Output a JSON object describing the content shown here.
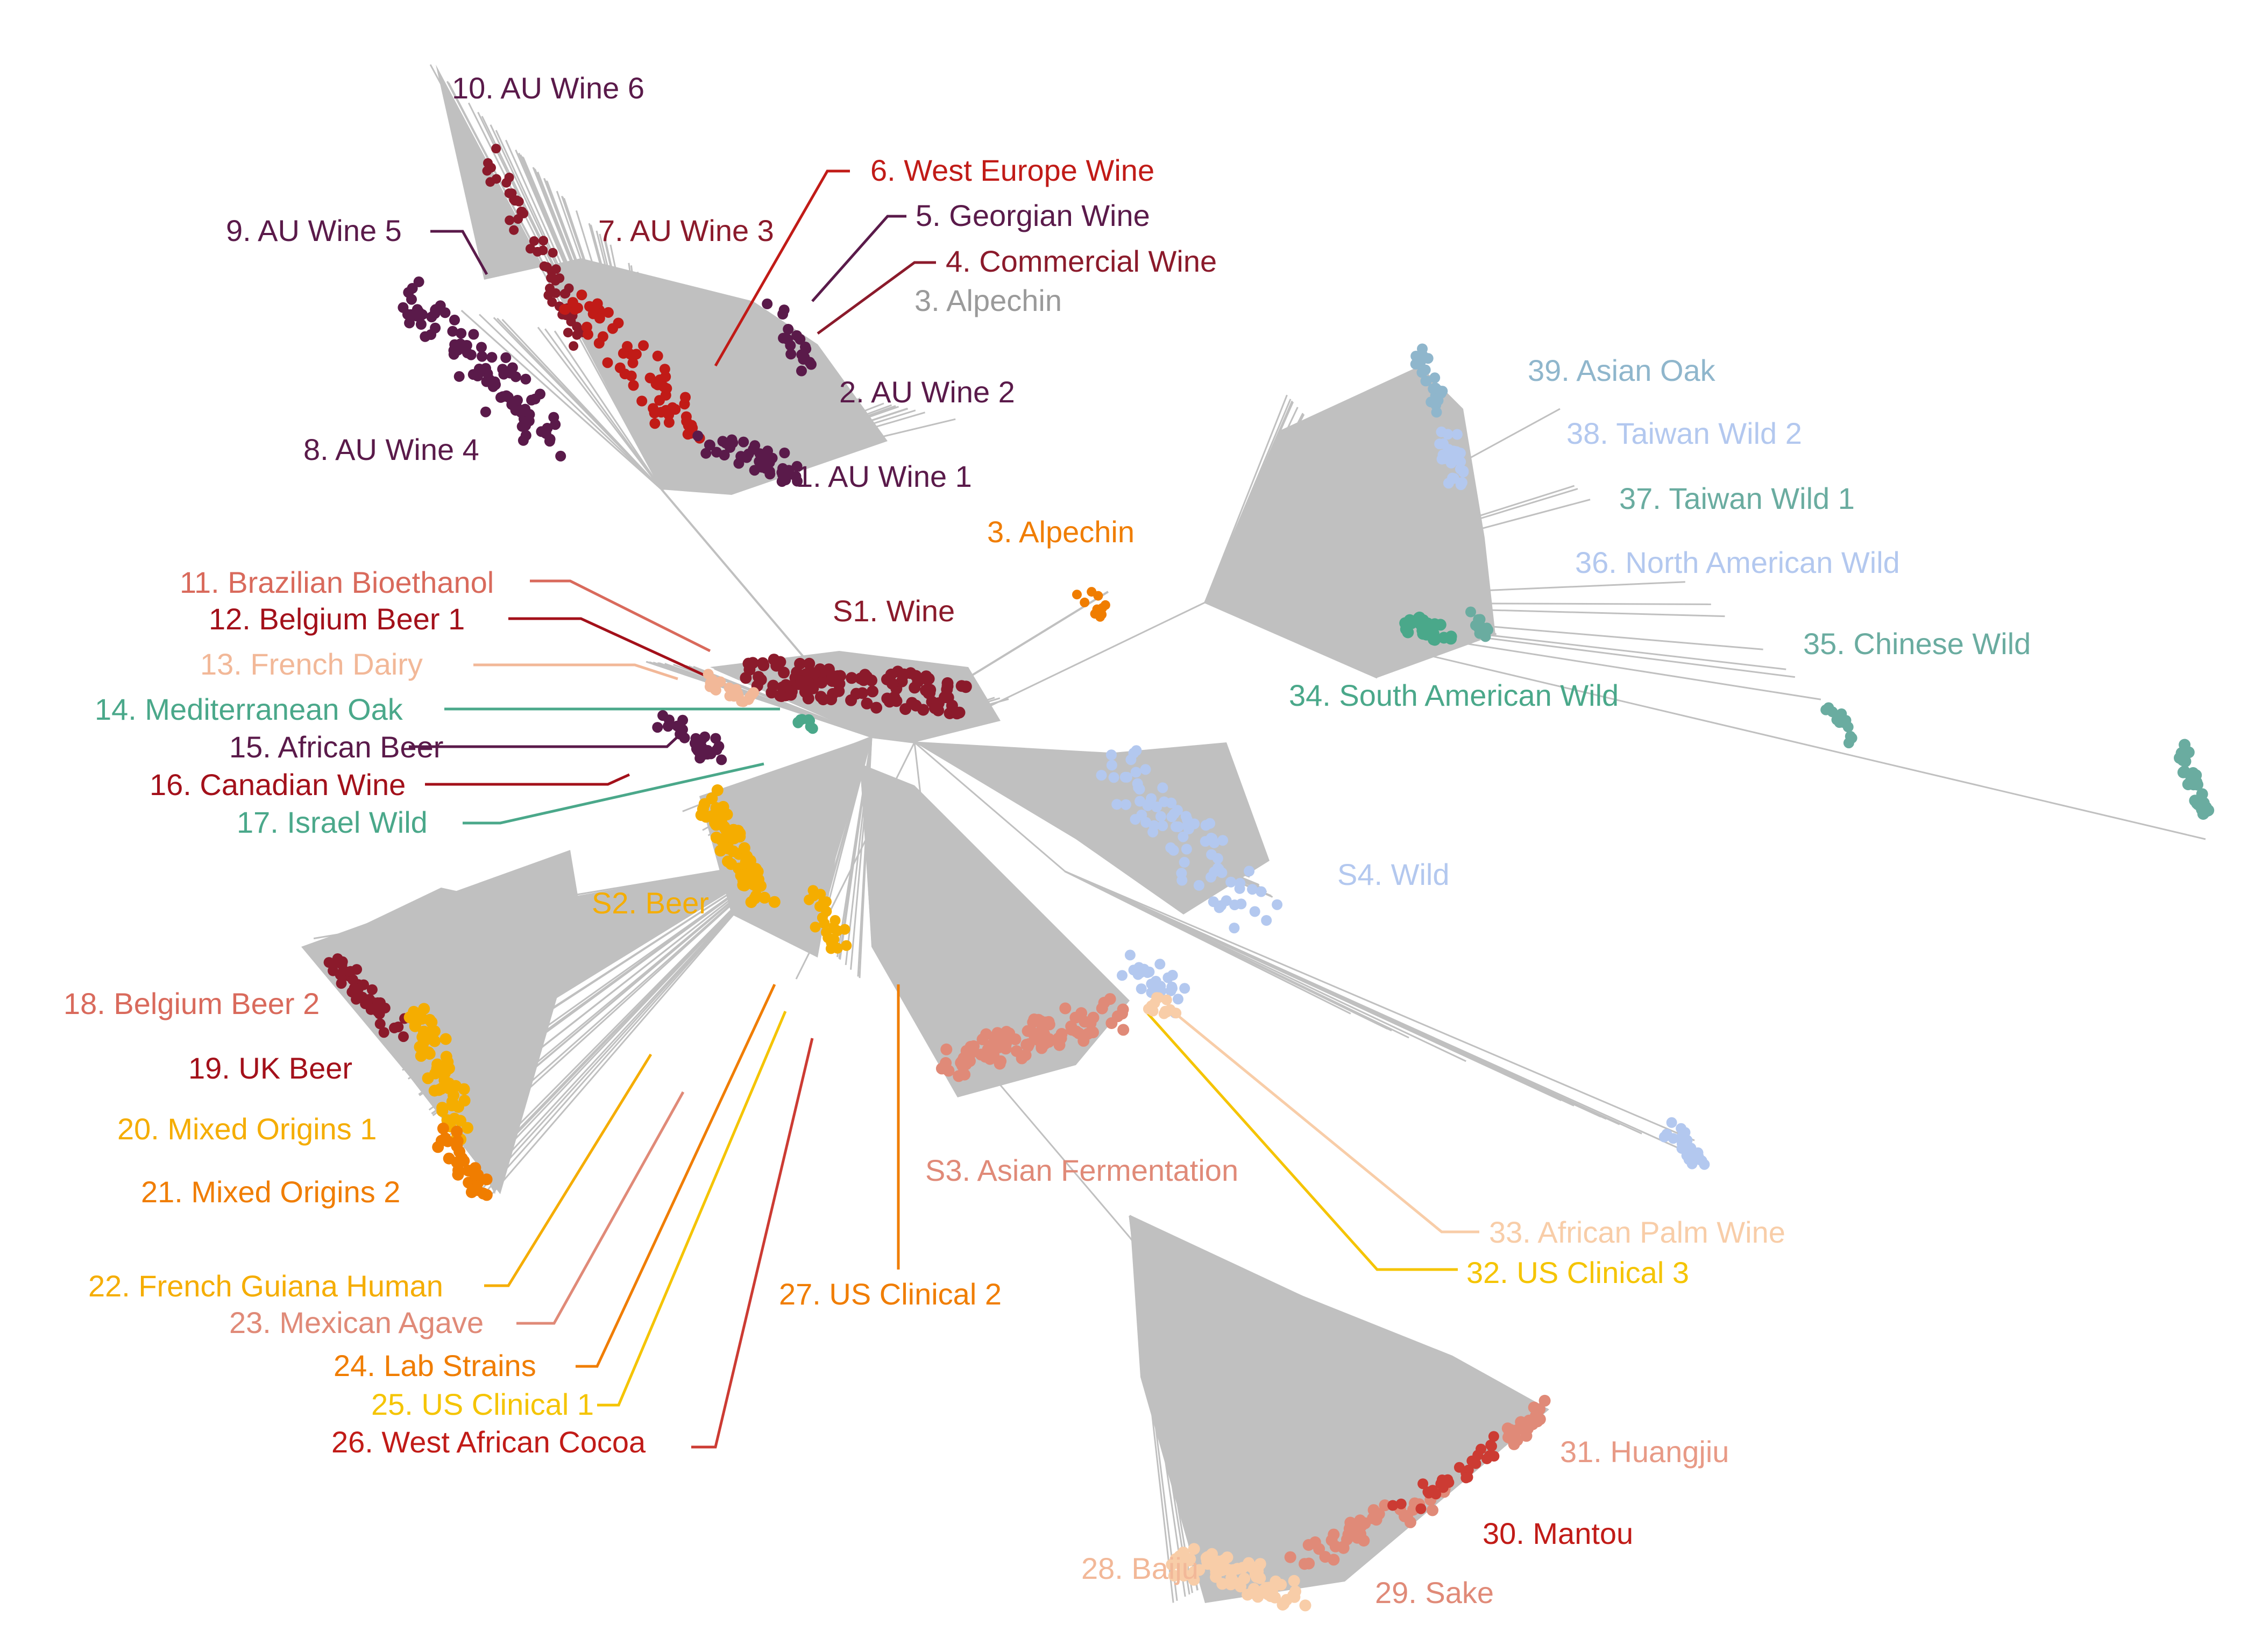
{
  "colors": {
    "branch": "#c0c0c0",
    "wine_dark": "#8b1a2b",
    "wine_purple": "#5a1a4a",
    "wine_red": "#c11b17",
    "grey_label": "#9a9a9a",
    "orange": "#f07d00",
    "gold": "#f5ad00",
    "yellow": "#f5c400",
    "salmon": "#e08a78",
    "peach": "#f2b898",
    "light_peach": "#f8cda8",
    "teal": "#4aa88a",
    "blue_grey": "#8fb6cc",
    "light_blue": "#b3c8ef",
    "sea_green": "#6aaca0",
    "red_brick": "#cc3b33",
    "coral": "#d96a5c"
  },
  "labels": {
    "l10": "10. AU Wine 6",
    "l6": "6. West Europe Wine",
    "l9": "9. AU Wine 5",
    "l7": "7. AU Wine 3",
    "l5": "5. Georgian Wine",
    "l4": "4. Commercial Wine",
    "l3a": "3. Alpechin",
    "l2": "2. AU Wine 2",
    "l8": "8. AU Wine 4",
    "l1": "1. AU Wine 1",
    "l3b": "3. Alpechin",
    "l39": "39. Asian Oak",
    "l38": "38. Taiwan Wild 2",
    "l37": "37. Taiwan Wild 1",
    "l36": "36. North American Wild",
    "l35": "35. Chinese Wild",
    "l34": "34. South American Wild",
    "l11": "11. Brazilian Bioethanol",
    "l12": "12. Belgium Beer 1",
    "l13": "13. French Dairy",
    "l14": "14. Mediterranean Oak",
    "l15": "15. African Beer",
    "l16": "16. Canadian Wine",
    "l17": "17. Israel Wild",
    "s1": "S1. Wine",
    "s2": "S2. Beer",
    "s4": "S4. Wild",
    "l18": "18. Belgium Beer 2",
    "l19": "19. UK Beer",
    "l20": "20. Mixed Origins 1",
    "l21": "21. Mixed Origins 2",
    "s3": "S3. Asian Fermentation",
    "l22": "22. French Guiana Human",
    "l23": "23. Mexican Agave",
    "l24": "24. Lab Strains",
    "l25": "25. US Clinical 1",
    "l26": "26. West African Cocoa",
    "l27": "27. US Clinical 2",
    "l33": "33. African Palm Wine",
    "l32": "32. US Clinical 3",
    "l31": "31. Huangjiu",
    "l30": "30. Mantou",
    "l28": "28. Baiju",
    "l29": "29. Sake"
  }
}
